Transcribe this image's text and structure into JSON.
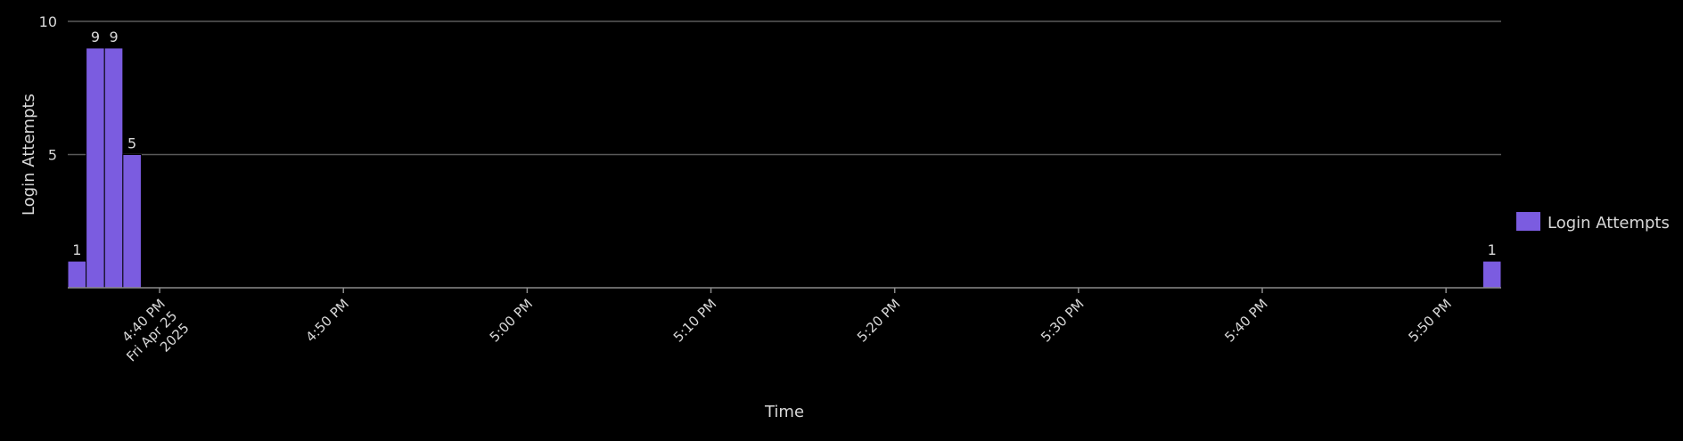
{
  "chart_data": {
    "type": "bar",
    "title": "",
    "xlabel": "Time",
    "ylabel": "Login Attempts",
    "ylim": [
      0,
      10
    ],
    "yticks": [
      5,
      10
    ],
    "xticks": [
      {
        "t": "16:40",
        "lines": [
          "4:40 PM",
          "Fri Apr 25",
          "2025"
        ]
      },
      {
        "t": "16:50",
        "lines": [
          "4:50 PM"
        ]
      },
      {
        "t": "17:00",
        "lines": [
          "5:00 PM"
        ]
      },
      {
        "t": "17:10",
        "lines": [
          "5:10 PM"
        ]
      },
      {
        "t": "17:20",
        "lines": [
          "5:20 PM"
        ]
      },
      {
        "t": "17:30",
        "lines": [
          "5:30 PM"
        ]
      },
      {
        "t": "17:40",
        "lines": [
          "5:40 PM"
        ]
      },
      {
        "t": "17:50",
        "lines": [
          "5:50 PM"
        ]
      }
    ],
    "x_range": [
      "16:35",
      "17:53"
    ],
    "bar_width_minutes": 1,
    "series": [
      {
        "name": "Login Attempts",
        "color": "#7b5ce0",
        "points": [
          {
            "start": "16:35",
            "value": 1
          },
          {
            "start": "16:36",
            "value": 9
          },
          {
            "start": "16:37",
            "value": 9
          },
          {
            "start": "16:38",
            "value": 5
          },
          {
            "start": "17:52",
            "value": 1
          }
        ]
      }
    ],
    "grid": true,
    "legend_position": "right",
    "colors": {
      "background": "#000000",
      "grid": "#5a5a5a",
      "text": "#d8d8d8",
      "axis": "#8a8a8a"
    }
  }
}
